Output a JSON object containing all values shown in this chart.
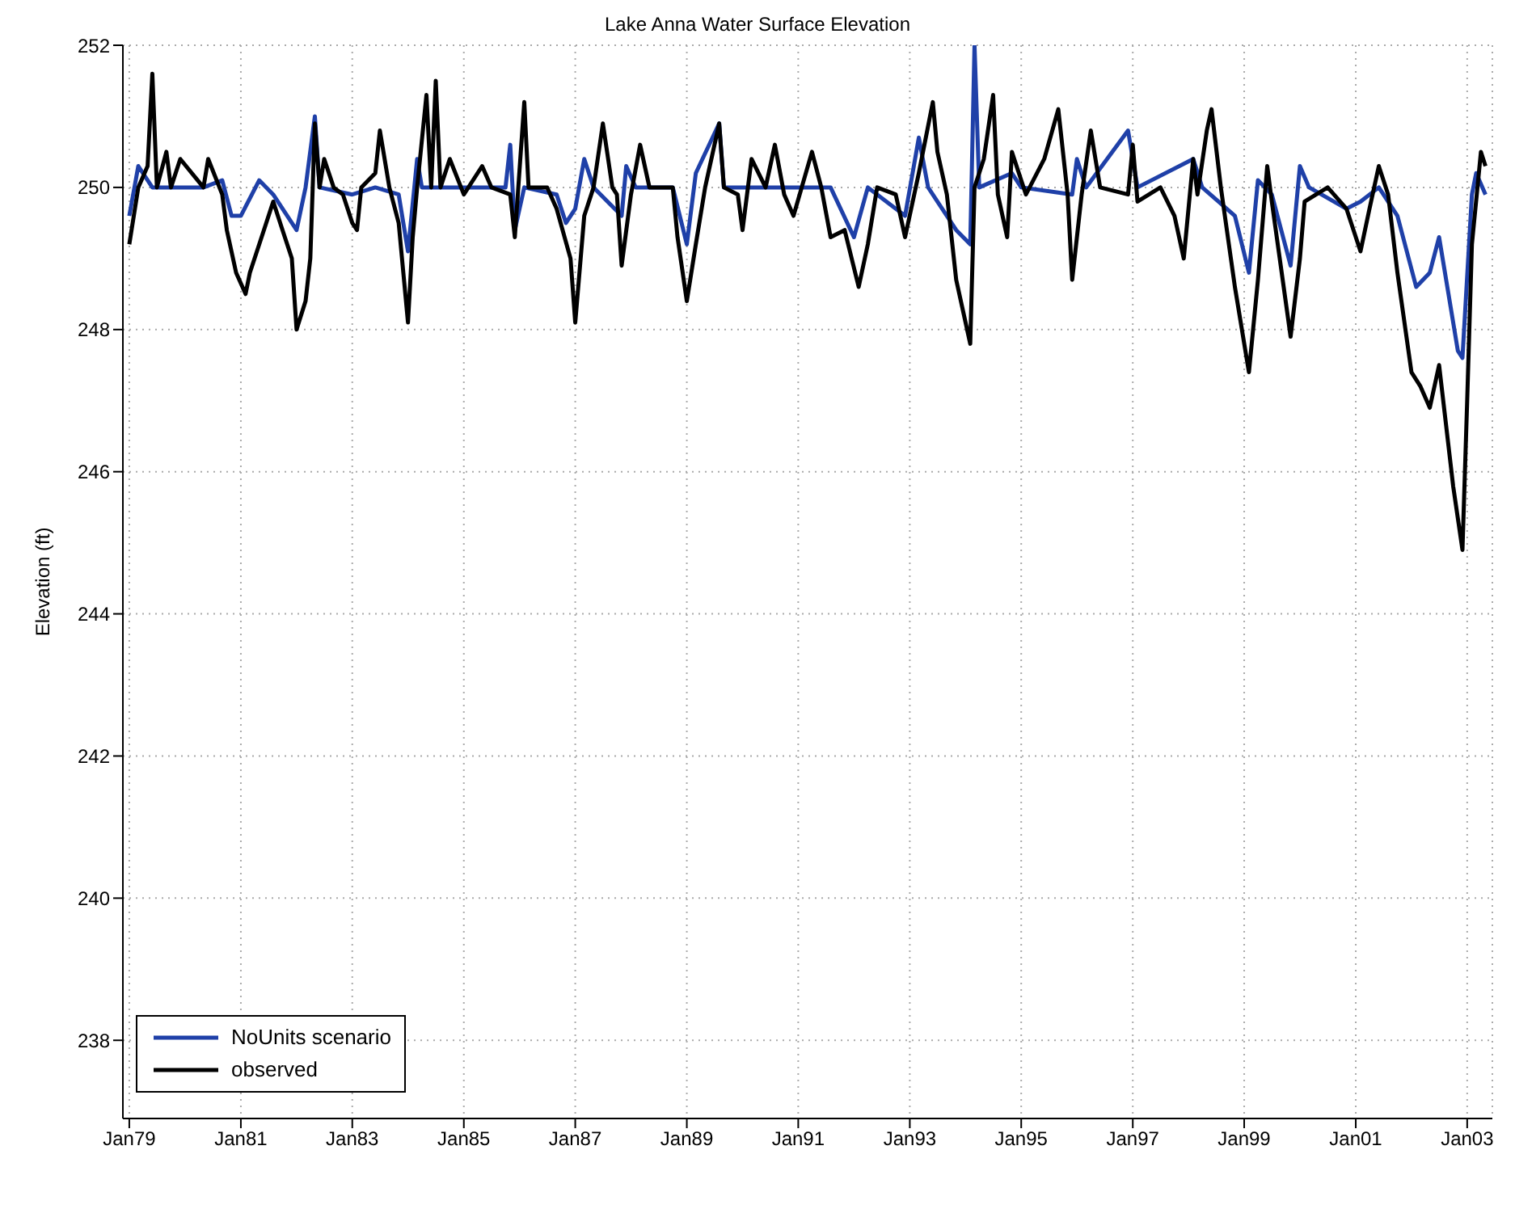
{
  "chart_data": {
    "type": "line",
    "title": "Lake Anna Water Surface Elevation",
    "ylabel": "Elevation (ft)",
    "xlim": [
      "1978-11-20",
      "2003-06-15"
    ],
    "ylim": [
      236.9,
      252
    ],
    "xticks": [
      {
        "value": "1979-01",
        "label": "Jan79"
      },
      {
        "value": "1981-01",
        "label": "Jan81"
      },
      {
        "value": "1983-01",
        "label": "Jan83"
      },
      {
        "value": "1985-01",
        "label": "Jan85"
      },
      {
        "value": "1987-01",
        "label": "Jan87"
      },
      {
        "value": "1989-01",
        "label": "Jan89"
      },
      {
        "value": "1991-01",
        "label": "Jan91"
      },
      {
        "value": "1993-01",
        "label": "Jan93"
      },
      {
        "value": "1995-01",
        "label": "Jan95"
      },
      {
        "value": "1997-01",
        "label": "Jan97"
      },
      {
        "value": "1999-01",
        "label": "Jan99"
      },
      {
        "value": "2001-01",
        "label": "Jan01"
      },
      {
        "value": "2003-01",
        "label": "Jan03"
      }
    ],
    "yticks": [
      238,
      240,
      242,
      244,
      246,
      248,
      250,
      252
    ],
    "grid": true,
    "legend": "bottom left",
    "marker": "none",
    "line_style": "solid",
    "series": [
      {
        "name": "NoUnits scenario",
        "color": "#1f40a8",
        "x": [
          "1979-01",
          "1979-03",
          "1979-06",
          "1980-05",
          "1980-09",
          "1980-11",
          "1981-01",
          "1981-05",
          "1981-08",
          "1982-01",
          "1982-03",
          "1982-05",
          "1982-06",
          "1983-01",
          "1983-06",
          "1983-11",
          "1984-01",
          "1984-03",
          "1984-04",
          "1985-10",
          "1985-11",
          "1985-12",
          "1986-02",
          "1986-09",
          "1986-11",
          "1987-01",
          "1987-03",
          "1987-05",
          "1987-11",
          "1987-12",
          "1988-02",
          "1988-10",
          "1989-01",
          "1989-03",
          "1989-08",
          "1989-09",
          "1991-08",
          "1992-01",
          "1992-04",
          "1992-12",
          "1993-03",
          "1993-05",
          "1993-11",
          "1994-02",
          "1994-03",
          "1994-04",
          "1994-11",
          "1995-01",
          "1995-12",
          "1996-01",
          "1996-03",
          "1996-12",
          "1997-02",
          "1998-02",
          "1998-04",
          "1998-11",
          "1999-02",
          "1999-04",
          "1999-07",
          "1999-11",
          "2000-01",
          "2000-03",
          "2000-11",
          "2001-02",
          "2001-06",
          "2001-10",
          "2002-02",
          "2002-05",
          "2002-07",
          "2002-11",
          "2002-12",
          "2003-02",
          "2003-03",
          "2003-05"
        ],
        "values": [
          249.6,
          250.3,
          250.0,
          250.0,
          250.1,
          249.6,
          249.6,
          250.1,
          249.9,
          249.4,
          250.0,
          251.0,
          250.0,
          249.9,
          250.0,
          249.9,
          249.1,
          250.4,
          250.0,
          250.0,
          250.6,
          249.4,
          250.0,
          249.9,
          249.5,
          249.7,
          250.4,
          250.0,
          249.6,
          250.3,
          250.0,
          250.0,
          249.2,
          250.2,
          250.9,
          250.0,
          250.0,
          249.3,
          250.0,
          249.6,
          250.7,
          250.0,
          249.4,
          249.2,
          252.0,
          250.0,
          250.2,
          250.0,
          249.9,
          250.4,
          250.0,
          250.8,
          250.0,
          250.4,
          250.0,
          249.6,
          248.8,
          250.1,
          249.9,
          248.9,
          250.3,
          250.0,
          249.7,
          249.8,
          250.0,
          249.6,
          248.6,
          248.8,
          249.3,
          247.7,
          247.6,
          249.9,
          250.2,
          249.9
        ]
      },
      {
        "name": "observed",
        "color": "#000000",
        "x": [
          "1979-01",
          "1979-03",
          "1979-05",
          "1979-06",
          "1979-07",
          "1979-09",
          "1979-10",
          "1979-12",
          "1980-05",
          "1980-06",
          "1980-09",
          "1980-10",
          "1980-12",
          "1981-02",
          "1981-03",
          "1981-06",
          "1981-08",
          "1981-10",
          "1981-12",
          "1982-01",
          "1982-03",
          "1982-04",
          "1982-05",
          "1982-06",
          "1982-07",
          "1982-09",
          "1982-11",
          "1983-01",
          "1983-02",
          "1983-03",
          "1983-06",
          "1983-07",
          "1983-09",
          "1983-11",
          "1984-01",
          "1984-02",
          "1984-03",
          "1984-05",
          "1984-06",
          "1984-07",
          "1984-08",
          "1984-10",
          "1985-01",
          "1985-05",
          "1985-07",
          "1985-11",
          "1985-12",
          "1986-02",
          "1986-03",
          "1986-07",
          "1986-09",
          "1986-12",
          "1987-01",
          "1987-03",
          "1987-05",
          "1987-07",
          "1987-09",
          "1987-10",
          "1987-11",
          "1988-01",
          "1988-03",
          "1988-05",
          "1988-10",
          "1988-11",
          "1989-01",
          "1989-03",
          "1989-05",
          "1989-08",
          "1989-09",
          "1989-12",
          "1990-01",
          "1990-03",
          "1990-06",
          "1990-08",
          "1990-10",
          "1990-12",
          "1991-04",
          "1991-06",
          "1991-08",
          "1991-11",
          "1992-02",
          "1992-04",
          "1992-06",
          "1992-10",
          "1992-12",
          "1993-03",
          "1993-06",
          "1993-07",
          "1993-09",
          "1993-11",
          "1994-02",
          "1994-03",
          "1994-05",
          "1994-07",
          "1994-08",
          "1994-10",
          "1994-11",
          "1995-02",
          "1995-06",
          "1995-09",
          "1995-11",
          "1995-12",
          "1996-02",
          "1996-04",
          "1996-06",
          "1996-12",
          "1997-01",
          "1997-02",
          "1997-07",
          "1997-10",
          "1997-12",
          "1998-02",
          "1998-03",
          "1998-05",
          "1998-06",
          "1998-08",
          "1998-11",
          "1999-02",
          "1999-04",
          "1999-06",
          "1999-07",
          "1999-11",
          "2000-01",
          "2000-02",
          "2000-07",
          "2000-11",
          "2001-02",
          "2001-04",
          "2001-06",
          "2001-08",
          "2001-10",
          "2002-01",
          "2002-03",
          "2002-05",
          "2002-07",
          "2002-10",
          "2002-12",
          "2003-01",
          "2003-02",
          "2003-04",
          "2003-05"
        ],
        "values": [
          249.2,
          250.0,
          250.3,
          251.6,
          250.0,
          250.5,
          250.0,
          250.4,
          250.0,
          250.4,
          249.9,
          249.4,
          248.8,
          248.5,
          248.8,
          249.4,
          249.8,
          249.4,
          249.0,
          248.0,
          248.4,
          249.0,
          250.9,
          250.0,
          250.4,
          250.0,
          249.9,
          249.5,
          249.4,
          250.0,
          250.2,
          250.8,
          250.0,
          249.5,
          248.1,
          249.3,
          250.0,
          251.3,
          250.0,
          251.5,
          250.0,
          250.4,
          249.9,
          250.3,
          250.0,
          249.9,
          249.3,
          251.2,
          250.0,
          250.0,
          249.7,
          249.0,
          248.1,
          249.6,
          250.0,
          250.9,
          250.0,
          249.9,
          248.9,
          249.9,
          250.6,
          250.0,
          250.0,
          249.3,
          248.4,
          249.2,
          250.0,
          250.9,
          250.0,
          249.9,
          249.4,
          250.4,
          250.0,
          250.6,
          249.9,
          249.6,
          250.5,
          250.0,
          249.3,
          249.4,
          248.6,
          249.2,
          250.0,
          249.9,
          249.3,
          250.2,
          251.2,
          250.5,
          249.9,
          248.7,
          247.8,
          250.0,
          250.4,
          251.3,
          249.9,
          249.3,
          250.5,
          249.9,
          250.4,
          251.1,
          249.9,
          248.7,
          249.9,
          250.8,
          250.0,
          249.9,
          250.6,
          249.8,
          250.0,
          249.6,
          249.0,
          250.4,
          249.9,
          250.8,
          251.1,
          250.0,
          248.6,
          247.4,
          248.7,
          250.3,
          249.8,
          247.9,
          249.0,
          249.8,
          250.0,
          249.7,
          249.1,
          249.7,
          250.3,
          249.9,
          248.8,
          247.4,
          247.2,
          246.9,
          247.5,
          245.8,
          244.9,
          247.0,
          249.2,
          250.5,
          250.3
        ]
      }
    ]
  }
}
